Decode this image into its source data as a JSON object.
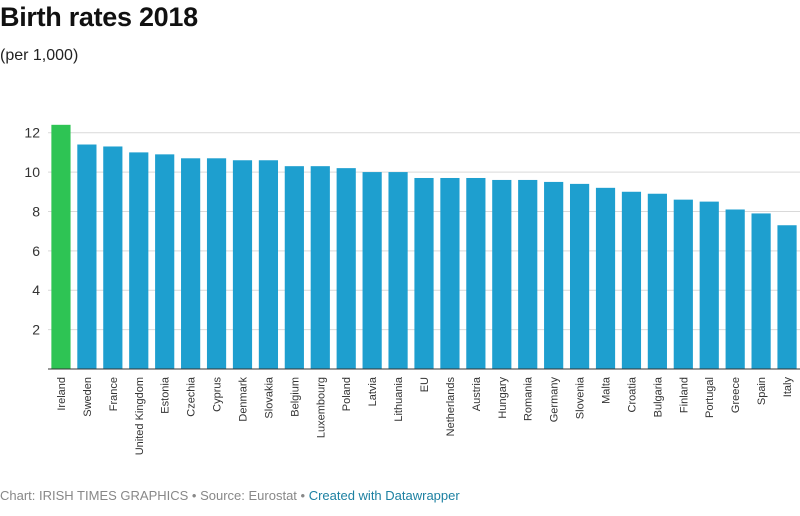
{
  "header": {
    "title": "Birth rates 2018",
    "subtitle": "(per 1,000)"
  },
  "footer": {
    "chart_credit": "Chart: IRISH TIMES GRAPHICS",
    "separator": " • ",
    "source": "Source: Eurostat",
    "created_with": "Created with Datawrapper"
  },
  "colors": {
    "highlight": "#2ec454",
    "bar": "#1e9fcf",
    "grid": "#d9d9d9",
    "baseline": "#333333"
  },
  "chart_data": {
    "type": "bar",
    "title": "Birth rates 2018",
    "subtitle": "(per 1,000)",
    "xlabel": "",
    "ylabel": "",
    "ylim": [
      0,
      12
    ],
    "yticks": [
      2,
      4,
      6,
      8,
      10,
      12
    ],
    "grid": true,
    "highlight_category": "Ireland",
    "categories": [
      "Ireland",
      "Sweden",
      "France",
      "United Kingdom",
      "Estonia",
      "Czechia",
      "Cyprus",
      "Denmark",
      "Slovakia",
      "Belgium",
      "Luxembourg",
      "Poland",
      "Latvia",
      "Lithuania",
      "EU",
      "Netherlands",
      "Austria",
      "Hungary",
      "Romania",
      "Germany",
      "Slovenia",
      "Malta",
      "Croatia",
      "Bulgaria",
      "Finland",
      "Portugal",
      "Greece",
      "Spain",
      "Italy"
    ],
    "values": [
      12.4,
      11.4,
      11.3,
      11.0,
      10.9,
      10.7,
      10.7,
      10.6,
      10.6,
      10.3,
      10.3,
      10.2,
      10.0,
      10.0,
      9.7,
      9.7,
      9.7,
      9.6,
      9.6,
      9.5,
      9.4,
      9.2,
      9.0,
      8.9,
      8.6,
      8.5,
      8.1,
      7.9,
      7.3
    ]
  }
}
